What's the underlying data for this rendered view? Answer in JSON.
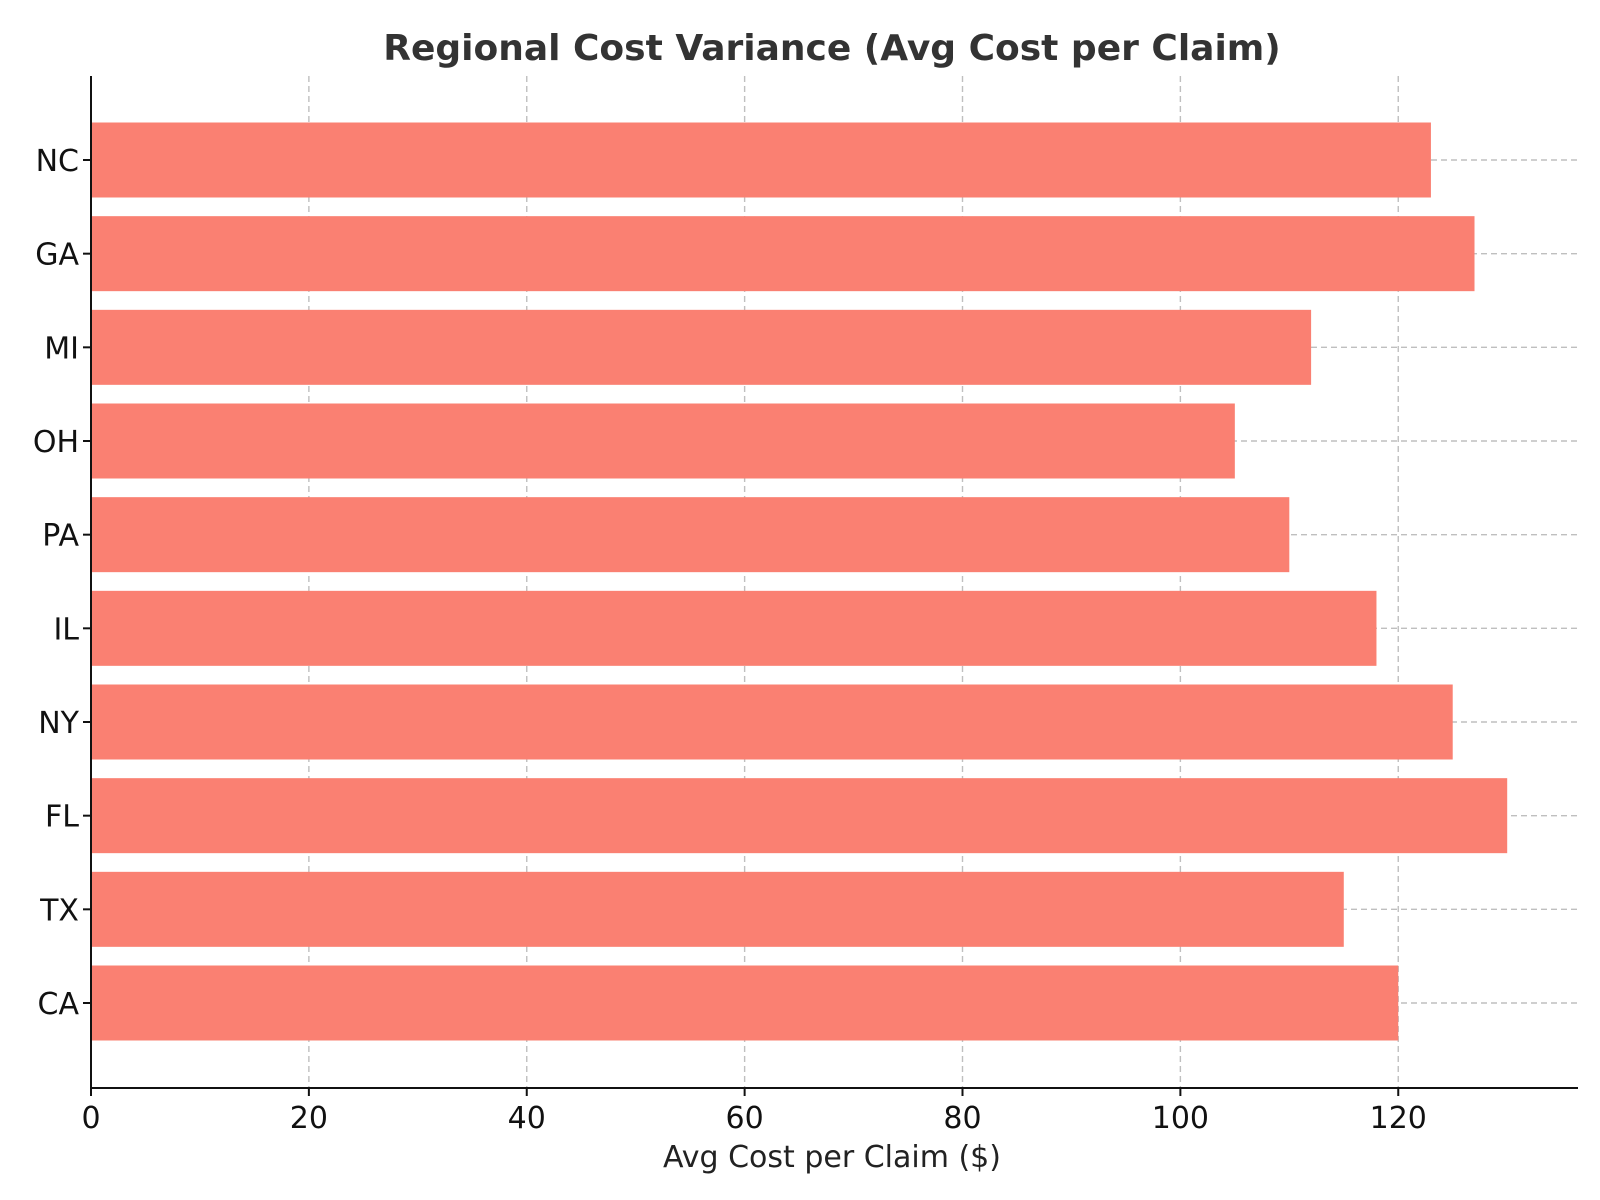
{
  "chart_data": {
    "type": "bar",
    "orientation": "horizontal",
    "title": "Regional Cost Variance (Avg Cost per Claim)",
    "xlabel": "Avg Cost per Claim ($)",
    "ylabel": "",
    "categories": [
      "CA",
      "TX",
      "FL",
      "NY",
      "IL",
      "PA",
      "OH",
      "MI",
      "GA",
      "NC"
    ],
    "values": [
      120,
      115,
      130,
      125,
      118,
      110,
      105,
      112,
      127,
      123
    ],
    "xlim": [
      0,
      136.5
    ],
    "xticks": [
      "0",
      "20",
      "40",
      "60",
      "80",
      "100",
      "120"
    ],
    "bar_color": "#FA8072",
    "grid": true,
    "legend": "none"
  }
}
